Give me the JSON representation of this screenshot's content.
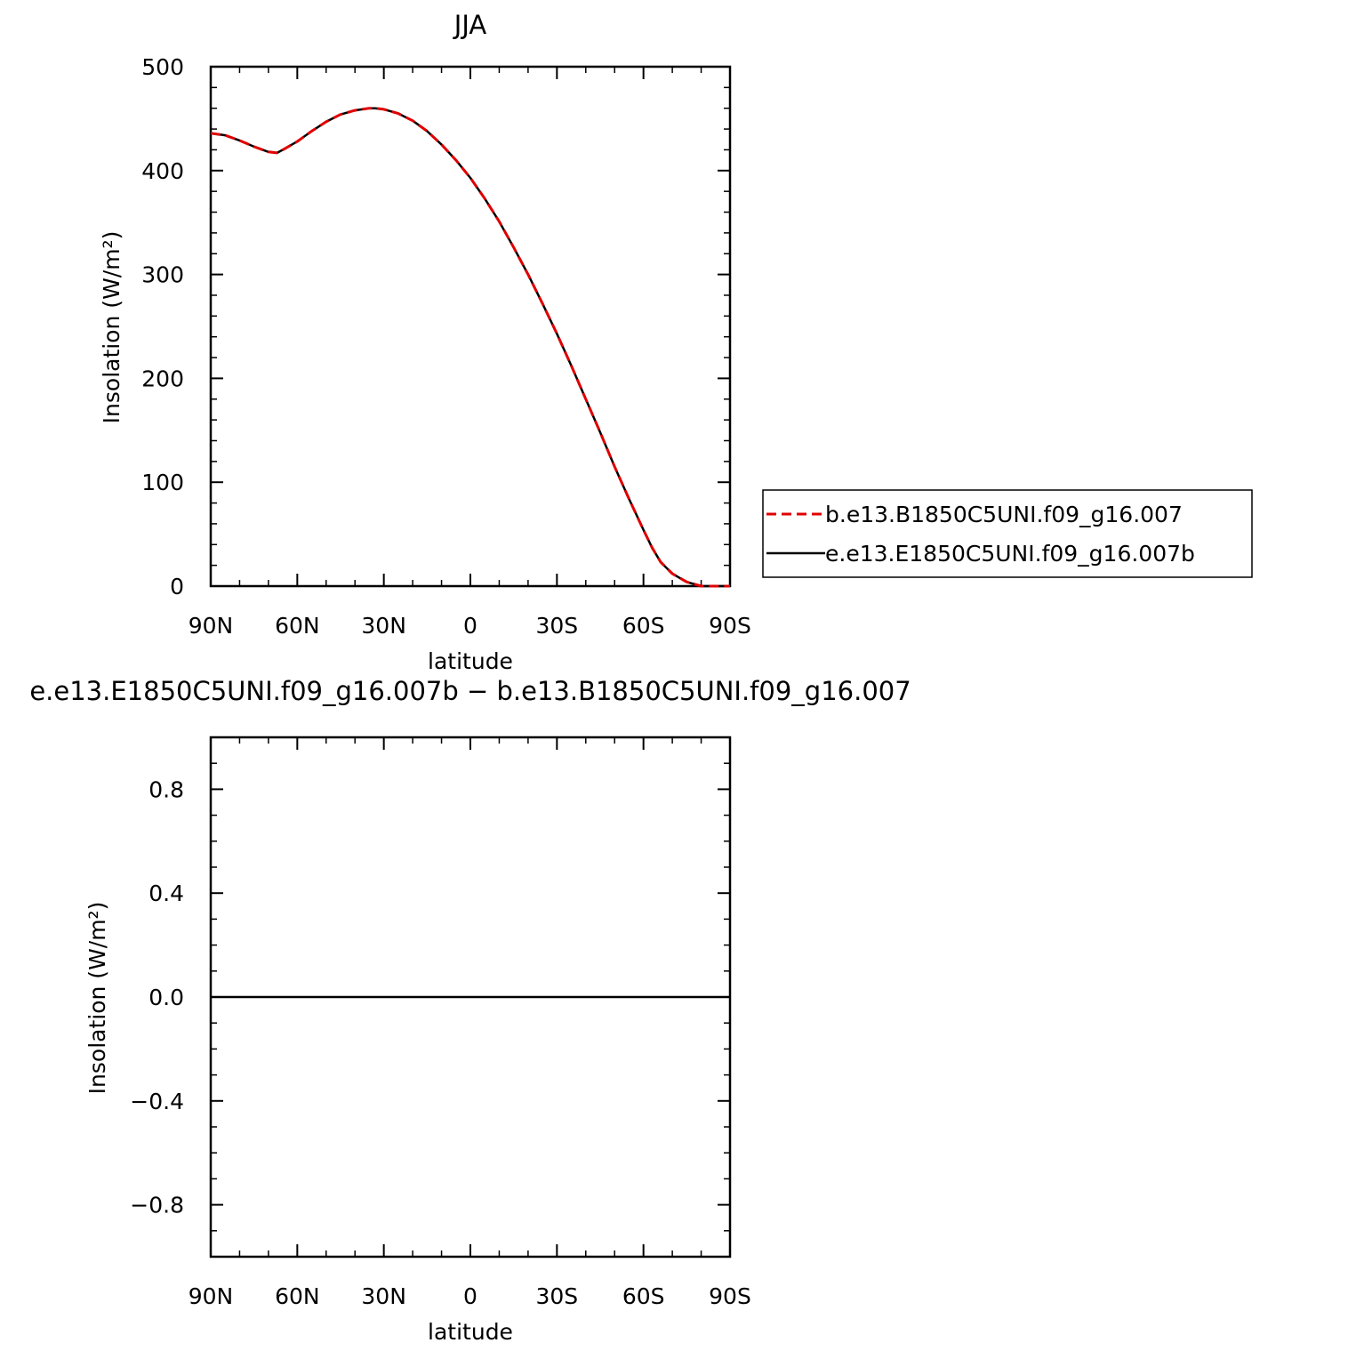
{
  "chart_data": [
    {
      "type": "line",
      "title": "JJA",
      "xlabel": "latitude",
      "ylabel": "Insolation (W/m²)",
      "xlim": [
        90,
        -90
      ],
      "ylim": [
        0,
        500
      ],
      "x_ticks": [
        {
          "value": 90,
          "label": "90N"
        },
        {
          "value": 60,
          "label": "60N"
        },
        {
          "value": 30,
          "label": "30N"
        },
        {
          "value": 0,
          "label": "0"
        },
        {
          "value": -30,
          "label": "30S"
        },
        {
          "value": -60,
          "label": "60S"
        },
        {
          "value": -90,
          "label": "90S"
        }
      ],
      "y_ticks": [
        {
          "value": 0,
          "label": "0"
        },
        {
          "value": 100,
          "label": "100"
        },
        {
          "value": 200,
          "label": "200"
        },
        {
          "value": 300,
          "label": "300"
        },
        {
          "value": 400,
          "label": "400"
        },
        {
          "value": 500,
          "label": "500"
        }
      ],
      "grid": false,
      "legend": "right",
      "x": [
        90,
        85,
        80,
        75,
        70,
        67,
        65,
        60,
        55,
        50,
        45,
        40,
        35,
        33,
        30,
        25,
        20,
        15,
        10,
        5,
        0,
        -5,
        -10,
        -15,
        -20,
        -25,
        -30,
        -35,
        -40,
        -45,
        -50,
        -55,
        -60,
        -63,
        -66,
        -70,
        -75,
        -80,
        -85,
        -90
      ],
      "series": [
        {
          "name": "b.e13.B1850C5UNI.f09_g16.007",
          "color": "#e00000",
          "dash": "dashed",
          "values": [
            436,
            434,
            429,
            423,
            418,
            417,
            420,
            428,
            438,
            447,
            454,
            458,
            460,
            460,
            459,
            455,
            448,
            438,
            425,
            410,
            393,
            373,
            351,
            326,
            300,
            272,
            243,
            212,
            180,
            148,
            115,
            84,
            54,
            37,
            23,
            12,
            4,
            0,
            0,
            0
          ]
        },
        {
          "name": "e.e13.E1850C5UNI.f09_g16.007b",
          "color": "#000000",
          "dash": "solid",
          "values": [
            436,
            434,
            429,
            423,
            418,
            417,
            420,
            428,
            438,
            447,
            454,
            458,
            460,
            460,
            459,
            455,
            448,
            438,
            425,
            410,
            393,
            373,
            351,
            326,
            300,
            272,
            243,
            212,
            180,
            148,
            115,
            84,
            54,
            37,
            23,
            12,
            4,
            0,
            0,
            0
          ]
        }
      ]
    },
    {
      "type": "line",
      "title": "e.e13.E1850C5UNI.f09_g16.007b − b.e13.B1850C5UNI.f09_g16.007",
      "xlabel": "latitude",
      "ylabel": "Insolation (W/m²)",
      "xlim": [
        90,
        -90
      ],
      "ylim": [
        -1,
        1
      ],
      "x_ticks": [
        {
          "value": 90,
          "label": "90N"
        },
        {
          "value": 60,
          "label": "60N"
        },
        {
          "value": 30,
          "label": "30N"
        },
        {
          "value": 0,
          "label": "0"
        },
        {
          "value": -30,
          "label": "30S"
        },
        {
          "value": -60,
          "label": "60S"
        },
        {
          "value": -90,
          "label": "90S"
        }
      ],
      "y_ticks": [
        {
          "value": -0.8,
          "label": "−0.8"
        },
        {
          "value": -0.4,
          "label": "−0.4"
        },
        {
          "value": 0,
          "label": "0.0"
        },
        {
          "value": 0.4,
          "label": "0.4"
        },
        {
          "value": 0.8,
          "label": "0.8"
        }
      ],
      "grid": false,
      "x": [
        90,
        -90
      ],
      "series": [
        {
          "color": "#000000",
          "dash": "solid",
          "values": [
            0,
            0
          ]
        }
      ]
    }
  ]
}
